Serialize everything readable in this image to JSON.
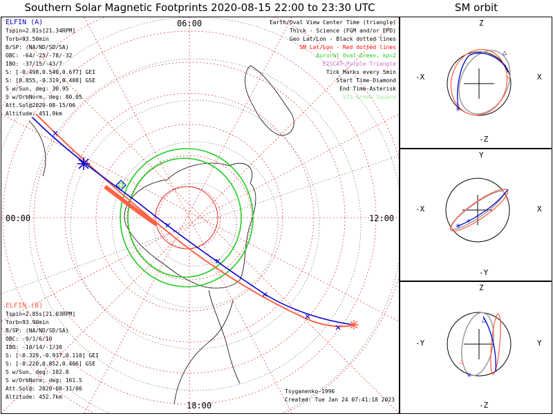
{
  "title": "Southern Solar Magnetic Footprints 2020-08-15 22:00 to 23:30 UTC",
  "sm_title": "SM orbit",
  "elfin_a": {
    "name": "ELFIN (A)",
    "lines": [
      "Tspin=2.81s[21.34RPM]",
      "Torb=93.50min",
      "B/SP: (NA/ND/SD/SA)",
      "OBC: -64/-25/-78/-32",
      "IBO: -37/15/-43/7",
      "S: [-0.498,0.540,0.677] GEI",
      "S: [0.855,-0.319,0.408] GSE",
      "S w/Sun, deg: 30.95",
      "S w/OrbNorm, deg: 80.05",
      "Att.Sol@2020-08-15/06",
      "Altitude: 451.9km"
    ]
  },
  "elfin_b": {
    "name": "ELFIN (B)",
    "lines": [
      "Tspin=2.85s[21.03RPM]",
      "Torb=93.90min",
      "B/SP: (NA/ND/SD/SA)",
      "OBC: -9/1/6/10",
      "IBO: -10/14/-1/30",
      "S: [-0.329,-0.937,0.110] GEI",
      "S: [-0.220,0.852,0.406] GSE",
      "S w/Sun, deg: 102.8",
      "S w/OrbNorm, deg: 161.5",
      "Att.Sol@: 2020-08-11/06",
      "Altitude: 452.7km"
    ]
  },
  "legend": {
    "l1": "Earth/Oval View Center Time (triangle)",
    "l2": "Thick - Science (FGM and/or EPD)",
    "l3": "Geo Lat/Lon - Black dotted lines",
    "l4": "SM Lat/Lon - Red dotted lines",
    "l5": "Auroral Oval-Green, kp=2",
    "l6": "EISCAT-Purple Triangle",
    "l7": "Tick Marks every 5min",
    "l8": "Start Time-Diamond",
    "l9": "End Time-Asterisk",
    "l10": "VIS-Green Square"
  },
  "ticks": {
    "top": "06:00",
    "left": "00:00",
    "right": "12:00",
    "bottom": "18:00"
  },
  "footer": {
    "author": "Tsyganenko-1996",
    "created": "Created: Tue Jan 24 07:41:18 2023"
  },
  "sm_panels": [
    {
      "top": "Z",
      "bottom": "-Z",
      "left": "-X",
      "right": "X"
    },
    {
      "top": "Y",
      "bottom": "-Y",
      "left": "-X",
      "right": "X"
    },
    {
      "top": "Z",
      "bottom": "-Z",
      "left": "-Y",
      "right": "Y"
    }
  ],
  "colors": {
    "elfin_a": "#0000cc",
    "elfin_b": "#ff6347",
    "oval": "#22cc22",
    "sm_grid": "#dd0000",
    "geo_grid": "#000000"
  }
}
